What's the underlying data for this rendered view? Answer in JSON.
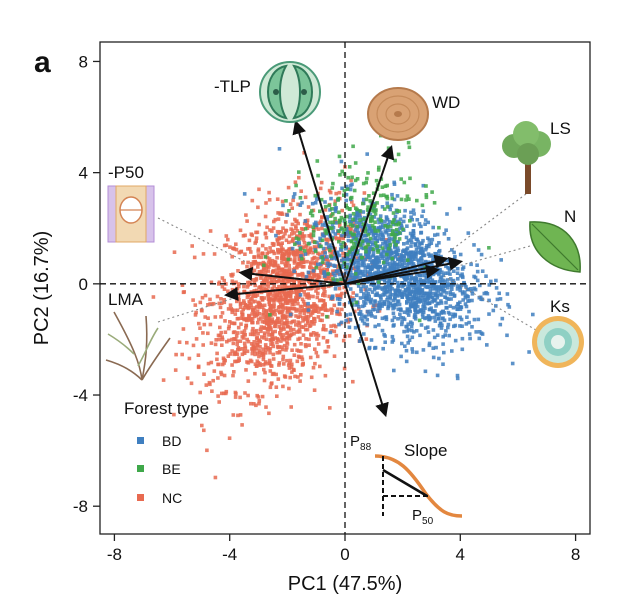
{
  "chart_data": {
    "type": "scatter",
    "panel_label": "a",
    "xlabel": "PC1 (47.5%)",
    "ylabel": "PC2 (16.7%)",
    "xlim": [
      -8.5,
      8.5
    ],
    "ylim": [
      -9,
      8.7
    ],
    "xticks": [
      -8,
      -4,
      0,
      4,
      8
    ],
    "yticks": [
      -8,
      -4,
      0,
      4,
      8
    ],
    "reference_lines": {
      "x": 0,
      "y": 0,
      "style": "dashed"
    },
    "legend": {
      "title": "Forest type",
      "position": "bottom-left",
      "entries": [
        {
          "label": "BD",
          "color": "#3f7fc0"
        },
        {
          "label": "BE",
          "color": "#3fa84a"
        },
        {
          "label": "NC",
          "color": "#e86a50"
        }
      ]
    },
    "series": [
      {
        "name": "BD",
        "color": "#3f7fc0",
        "center": [
          1.8,
          0.4
        ],
        "spread": [
          1.3,
          1.2
        ],
        "tilt": -0.35,
        "count": 1600
      },
      {
        "name": "BE",
        "color": "#3fa84a",
        "center": [
          0.5,
          2.2
        ],
        "spread": [
          1.1,
          1.2
        ],
        "tilt": 0.2,
        "count": 260
      },
      {
        "name": "NC",
        "color": "#e86a50",
        "center": [
          -2.2,
          -0.5
        ],
        "spread": [
          1.2,
          1.6
        ],
        "tilt": 0.25,
        "count": 1600
      }
    ],
    "loadings": [
      {
        "name": "-TLP",
        "x": -1.7,
        "y": 5.8
      },
      {
        "name": "WD",
        "x": 1.6,
        "y": 4.9
      },
      {
        "name": "LS",
        "x": 3.5,
        "y": 0.9
      },
      {
        "name": "N",
        "x": 4.0,
        "y": 0.8
      },
      {
        "name": "Ks",
        "x": 3.2,
        "y": 0.5
      },
      {
        "name": "-P50",
        "x": -3.6,
        "y": 0.4
      },
      {
        "name": "LMA",
        "x": -4.1,
        "y": -0.4
      },
      {
        "name": "Slope",
        "x": 1.4,
        "y": -4.7
      }
    ],
    "inset": {
      "label_slope": "Slope",
      "label_p88": "P",
      "sub_p88": "88",
      "label_p50": "P",
      "sub_p50": "50"
    }
  }
}
